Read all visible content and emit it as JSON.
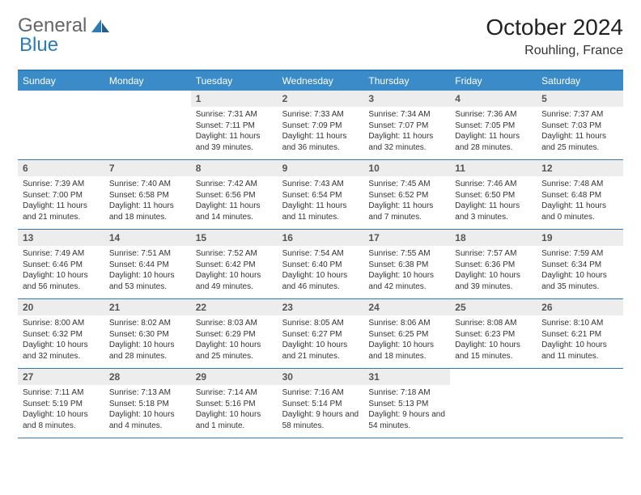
{
  "logo": {
    "general": "General",
    "blue": "Blue"
  },
  "title": "October 2024",
  "location": "Rouhling, France",
  "colors": {
    "header_bg": "#3b8bc9",
    "header_text": "#ffffff",
    "border": "#2b7bb8",
    "daynum_bg": "#ededed",
    "daynum_text": "#555555",
    "body_text": "#333333",
    "logo_gray": "#666666",
    "logo_blue": "#2b7bb8"
  },
  "daysOfWeek": [
    "Sunday",
    "Monday",
    "Tuesday",
    "Wednesday",
    "Thursday",
    "Friday",
    "Saturday"
  ],
  "weeks": [
    [
      {
        "num": "",
        "sunrise": "",
        "sunset": "",
        "daylight": ""
      },
      {
        "num": "",
        "sunrise": "",
        "sunset": "",
        "daylight": ""
      },
      {
        "num": "1",
        "sunrise": "Sunrise: 7:31 AM",
        "sunset": "Sunset: 7:11 PM",
        "daylight": "Daylight: 11 hours and 39 minutes."
      },
      {
        "num": "2",
        "sunrise": "Sunrise: 7:33 AM",
        "sunset": "Sunset: 7:09 PM",
        "daylight": "Daylight: 11 hours and 36 minutes."
      },
      {
        "num": "3",
        "sunrise": "Sunrise: 7:34 AM",
        "sunset": "Sunset: 7:07 PM",
        "daylight": "Daylight: 11 hours and 32 minutes."
      },
      {
        "num": "4",
        "sunrise": "Sunrise: 7:36 AM",
        "sunset": "Sunset: 7:05 PM",
        "daylight": "Daylight: 11 hours and 28 minutes."
      },
      {
        "num": "5",
        "sunrise": "Sunrise: 7:37 AM",
        "sunset": "Sunset: 7:03 PM",
        "daylight": "Daylight: 11 hours and 25 minutes."
      }
    ],
    [
      {
        "num": "6",
        "sunrise": "Sunrise: 7:39 AM",
        "sunset": "Sunset: 7:00 PM",
        "daylight": "Daylight: 11 hours and 21 minutes."
      },
      {
        "num": "7",
        "sunrise": "Sunrise: 7:40 AM",
        "sunset": "Sunset: 6:58 PM",
        "daylight": "Daylight: 11 hours and 18 minutes."
      },
      {
        "num": "8",
        "sunrise": "Sunrise: 7:42 AM",
        "sunset": "Sunset: 6:56 PM",
        "daylight": "Daylight: 11 hours and 14 minutes."
      },
      {
        "num": "9",
        "sunrise": "Sunrise: 7:43 AM",
        "sunset": "Sunset: 6:54 PM",
        "daylight": "Daylight: 11 hours and 11 minutes."
      },
      {
        "num": "10",
        "sunrise": "Sunrise: 7:45 AM",
        "sunset": "Sunset: 6:52 PM",
        "daylight": "Daylight: 11 hours and 7 minutes."
      },
      {
        "num": "11",
        "sunrise": "Sunrise: 7:46 AM",
        "sunset": "Sunset: 6:50 PM",
        "daylight": "Daylight: 11 hours and 3 minutes."
      },
      {
        "num": "12",
        "sunrise": "Sunrise: 7:48 AM",
        "sunset": "Sunset: 6:48 PM",
        "daylight": "Daylight: 11 hours and 0 minutes."
      }
    ],
    [
      {
        "num": "13",
        "sunrise": "Sunrise: 7:49 AM",
        "sunset": "Sunset: 6:46 PM",
        "daylight": "Daylight: 10 hours and 56 minutes."
      },
      {
        "num": "14",
        "sunrise": "Sunrise: 7:51 AM",
        "sunset": "Sunset: 6:44 PM",
        "daylight": "Daylight: 10 hours and 53 minutes."
      },
      {
        "num": "15",
        "sunrise": "Sunrise: 7:52 AM",
        "sunset": "Sunset: 6:42 PM",
        "daylight": "Daylight: 10 hours and 49 minutes."
      },
      {
        "num": "16",
        "sunrise": "Sunrise: 7:54 AM",
        "sunset": "Sunset: 6:40 PM",
        "daylight": "Daylight: 10 hours and 46 minutes."
      },
      {
        "num": "17",
        "sunrise": "Sunrise: 7:55 AM",
        "sunset": "Sunset: 6:38 PM",
        "daylight": "Daylight: 10 hours and 42 minutes."
      },
      {
        "num": "18",
        "sunrise": "Sunrise: 7:57 AM",
        "sunset": "Sunset: 6:36 PM",
        "daylight": "Daylight: 10 hours and 39 minutes."
      },
      {
        "num": "19",
        "sunrise": "Sunrise: 7:59 AM",
        "sunset": "Sunset: 6:34 PM",
        "daylight": "Daylight: 10 hours and 35 minutes."
      }
    ],
    [
      {
        "num": "20",
        "sunrise": "Sunrise: 8:00 AM",
        "sunset": "Sunset: 6:32 PM",
        "daylight": "Daylight: 10 hours and 32 minutes."
      },
      {
        "num": "21",
        "sunrise": "Sunrise: 8:02 AM",
        "sunset": "Sunset: 6:30 PM",
        "daylight": "Daylight: 10 hours and 28 minutes."
      },
      {
        "num": "22",
        "sunrise": "Sunrise: 8:03 AM",
        "sunset": "Sunset: 6:29 PM",
        "daylight": "Daylight: 10 hours and 25 minutes."
      },
      {
        "num": "23",
        "sunrise": "Sunrise: 8:05 AM",
        "sunset": "Sunset: 6:27 PM",
        "daylight": "Daylight: 10 hours and 21 minutes."
      },
      {
        "num": "24",
        "sunrise": "Sunrise: 8:06 AM",
        "sunset": "Sunset: 6:25 PM",
        "daylight": "Daylight: 10 hours and 18 minutes."
      },
      {
        "num": "25",
        "sunrise": "Sunrise: 8:08 AM",
        "sunset": "Sunset: 6:23 PM",
        "daylight": "Daylight: 10 hours and 15 minutes."
      },
      {
        "num": "26",
        "sunrise": "Sunrise: 8:10 AM",
        "sunset": "Sunset: 6:21 PM",
        "daylight": "Daylight: 10 hours and 11 minutes."
      }
    ],
    [
      {
        "num": "27",
        "sunrise": "Sunrise: 7:11 AM",
        "sunset": "Sunset: 5:19 PM",
        "daylight": "Daylight: 10 hours and 8 minutes."
      },
      {
        "num": "28",
        "sunrise": "Sunrise: 7:13 AM",
        "sunset": "Sunset: 5:18 PM",
        "daylight": "Daylight: 10 hours and 4 minutes."
      },
      {
        "num": "29",
        "sunrise": "Sunrise: 7:14 AM",
        "sunset": "Sunset: 5:16 PM",
        "daylight": "Daylight: 10 hours and 1 minute."
      },
      {
        "num": "30",
        "sunrise": "Sunrise: 7:16 AM",
        "sunset": "Sunset: 5:14 PM",
        "daylight": "Daylight: 9 hours and 58 minutes."
      },
      {
        "num": "31",
        "sunrise": "Sunrise: 7:18 AM",
        "sunset": "Sunset: 5:13 PM",
        "daylight": "Daylight: 9 hours and 54 minutes."
      },
      {
        "num": "",
        "sunrise": "",
        "sunset": "",
        "daylight": ""
      },
      {
        "num": "",
        "sunrise": "",
        "sunset": "",
        "daylight": ""
      }
    ]
  ]
}
